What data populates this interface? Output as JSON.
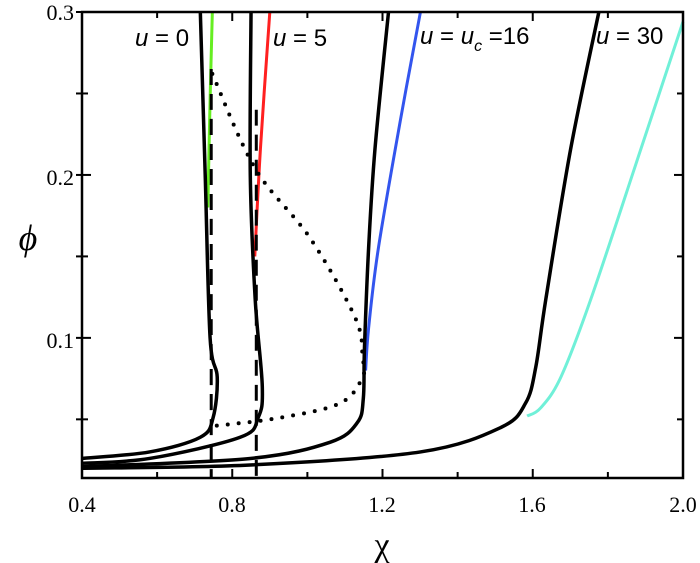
{
  "chart_data": {
    "type": "line",
    "title": "",
    "xlabel": "χ",
    "ylabel": "ϕ",
    "xlim": [
      0.4,
      2.0
    ],
    "ylim": [
      0.014,
      0.3
    ],
    "xticks": [
      "0.4",
      "0.8",
      "1.2",
      "1.6",
      "2.0"
    ],
    "yticks": [
      "0.1",
      "0.2",
      "0.3"
    ],
    "grid": false,
    "annotations": [
      {
        "prefix": "u",
        "text": " = 0"
      },
      {
        "prefix": "u",
        "text": " = 5"
      },
      {
        "prefix": "u",
        "text": " = ",
        "prefix2": "u",
        "sub": "c",
        "text2": " =16"
      },
      {
        "prefix": "u",
        "text": " = 30"
      }
    ],
    "series": [
      {
        "label_ref": 0,
        "color": "#000000",
        "style": "solid",
        "x": [
          0.715,
          0.728,
          0.741,
          0.76,
          0.749,
          0.715,
          0.58,
          0.4
        ],
        "y": [
          0.3,
          0.2,
          0.1,
          0.076,
          0.051,
          0.039,
          0.03,
          0.026
        ]
      },
      {
        "label_ref": 0,
        "color": "#66ee22",
        "style": "solid",
        "x": [
          0.747,
          0.741,
          0.735
        ],
        "y": [
          0.3,
          0.246,
          0.18
        ]
      },
      {
        "label_ref": 1,
        "color": "#000000",
        "style": "solid",
        "x": [
          0.85,
          0.848,
          0.861,
          0.88,
          0.869,
          0.821,
          0.58,
          0.4
        ],
        "y": [
          0.3,
          0.2,
          0.124,
          0.07,
          0.051,
          0.039,
          0.026,
          0.023
        ]
      },
      {
        "label_ref": 1,
        "color": "#ff2020",
        "style": "solid",
        "x": [
          0.9,
          0.875,
          0.86
        ],
        "y": [
          0.3,
          0.216,
          0.15
        ]
      },
      {
        "label_ref": 2,
        "color": "#000000",
        "style": "solid",
        "x": [
          1.216,
          1.18,
          1.163,
          1.152,
          1.149,
          1.133,
          1.061,
          0.848,
          0.4
        ],
        "y": [
          0.3,
          0.216,
          0.155,
          0.094,
          0.063,
          0.048,
          0.036,
          0.026,
          0.021
        ]
      },
      {
        "label_ref": 2,
        "color": "#3355ee",
        "style": "solid",
        "x": [
          1.301,
          1.248,
          1.189,
          1.163,
          1.155
        ],
        "y": [
          0.3,
          0.234,
          0.155,
          0.106,
          0.08
        ]
      },
      {
        "label_ref": 3,
        "color": "#000000",
        "style": "solid",
        "x": [
          1.776,
          1.701,
          1.635,
          1.608,
          1.581,
          1.515,
          1.301,
          0.848,
          0.4
        ],
        "y": [
          0.3,
          0.216,
          0.124,
          0.082,
          0.06,
          0.045,
          0.03,
          0.022,
          0.02
        ]
      },
      {
        "label_ref": 3,
        "color": "#70f0d8",
        "style": "solid",
        "x": [
          2.0,
          1.888,
          1.755,
          1.675,
          1.621,
          1.585
        ],
        "y": [
          0.294,
          0.216,
          0.124,
          0.076,
          0.057,
          0.052
        ]
      },
      {
        "color": "#000000",
        "style": "dotted",
        "x": [
          0.747,
          0.861,
          1.008,
          1.128,
          1.147,
          1.147,
          1.088,
          0.928,
          0.755
        ],
        "y": [
          0.262,
          0.204,
          0.161,
          0.112,
          0.088,
          0.076,
          0.06,
          0.051,
          0.046
        ]
      },
      {
        "color": "#000000",
        "style": "dashed",
        "x": [
          0.744,
          0.744
        ],
        "y": [
          0.265,
          0.014
        ]
      },
      {
        "color": "#000000",
        "style": "dashed",
        "x": [
          0.864,
          0.864
        ],
        "y": [
          0.24,
          0.014
        ]
      }
    ]
  }
}
